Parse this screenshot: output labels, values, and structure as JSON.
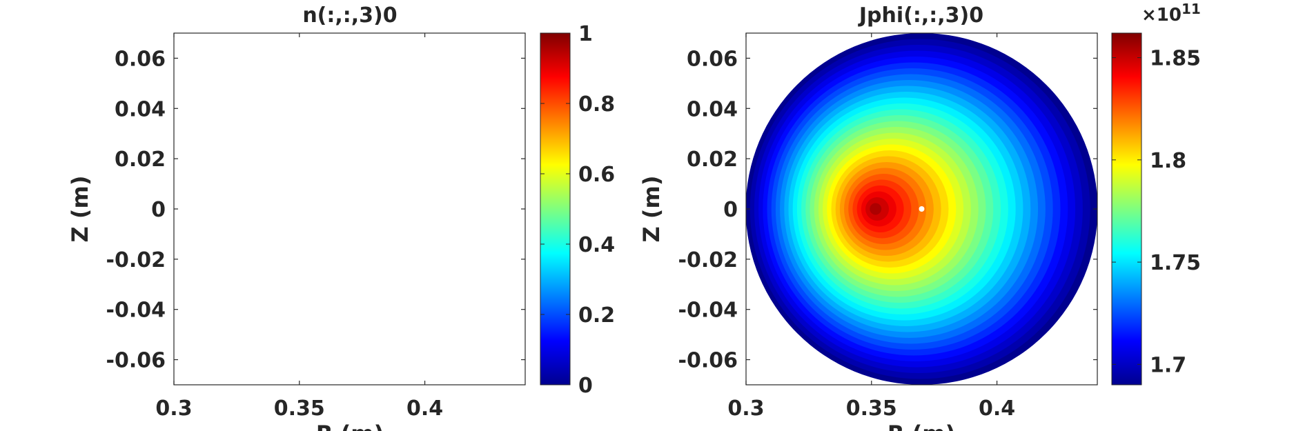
{
  "colors": {
    "axis": "#262626",
    "marker": "#ffffff",
    "colormap": "jet"
  },
  "chart_data": [
    {
      "type": "heatmap",
      "title": "n(:,:,3)0",
      "xlabel": "R (m)",
      "ylabel": "Z (m)",
      "xlim": [
        0.3,
        0.44
      ],
      "ylim": [
        -0.07,
        0.07
      ],
      "xticks": [
        {
          "value": 0.3,
          "label": "0.3"
        },
        {
          "value": 0.35,
          "label": "0.35"
        },
        {
          "value": 0.4,
          "label": "0.4"
        }
      ],
      "yticks": [
        {
          "value": 0.06,
          "label": "0.06"
        },
        {
          "value": 0.04,
          "label": "0.04"
        },
        {
          "value": 0.02,
          "label": "0.02"
        },
        {
          "value": 0,
          "label": "0"
        },
        {
          "value": -0.02,
          "label": "-0.02"
        },
        {
          "value": -0.04,
          "label": "-0.04"
        },
        {
          "value": -0.06,
          "label": "-0.06"
        }
      ],
      "field": "empty",
      "colorbar": {
        "range": [
          0,
          1
        ],
        "ticks": [
          {
            "value": 1,
            "label": "1"
          },
          {
            "value": 0.8,
            "label": "0.8"
          },
          {
            "value": 0.6,
            "label": "0.6"
          },
          {
            "value": 0.4,
            "label": "0.4"
          },
          {
            "value": 0.2,
            "label": "0.2"
          },
          {
            "value": 0,
            "label": "0"
          }
        ],
        "exponent": ""
      }
    },
    {
      "type": "heatmap",
      "title": "Jphi(:,:,3)0",
      "xlabel": "R (m)",
      "ylabel": "Z (m)",
      "xlim": [
        0.3,
        0.44
      ],
      "ylim": [
        -0.07,
        0.07
      ],
      "xticks": [
        {
          "value": 0.3,
          "label": "0.3"
        },
        {
          "value": 0.35,
          "label": "0.35"
        },
        {
          "value": 0.4,
          "label": "0.4"
        }
      ],
      "yticks": [
        {
          "value": 0.06,
          "label": "0.06"
        },
        {
          "value": 0.04,
          "label": "0.04"
        },
        {
          "value": 0.02,
          "label": "0.02"
        },
        {
          "value": 0,
          "label": "0"
        },
        {
          "value": -0.02,
          "label": "-0.02"
        },
        {
          "value": -0.04,
          "label": "-0.04"
        },
        {
          "value": -0.06,
          "label": "-0.06"
        }
      ],
      "field": {
        "shape": "disk",
        "center": [
          0.37,
          0
        ],
        "radius": 0.07,
        "peak_location": [
          0.351,
          0
        ],
        "peak_value": 1.86,
        "min_value": 1.69,
        "levels": 30
      },
      "marker": {
        "r": 0.37,
        "z": 0.0
      },
      "colorbar": {
        "range": [
          1.69,
          1.862
        ],
        "ticks": [
          {
            "value": 1.85,
            "label": "1.85"
          },
          {
            "value": 1.8,
            "label": "1.8"
          },
          {
            "value": 1.75,
            "label": "1.75"
          },
          {
            "value": 1.7,
            "label": "1.7"
          }
        ],
        "exponent": "×10",
        "exponent_power": "11"
      }
    }
  ]
}
